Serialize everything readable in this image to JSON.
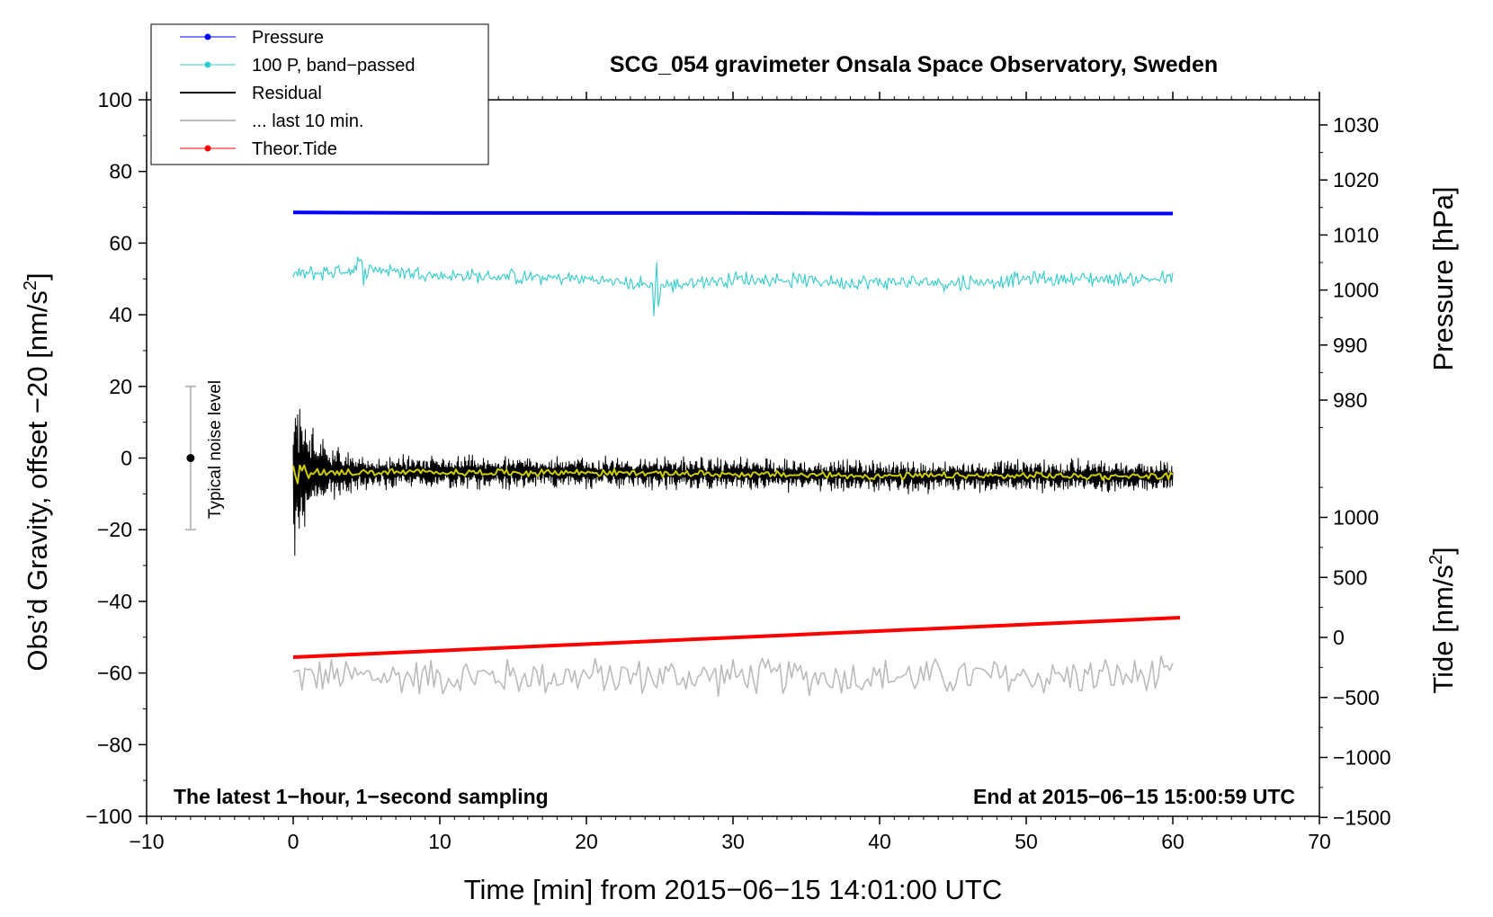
{
  "chart_data": {
    "type": "line",
    "title": "SCG_054 gravimeter Onsala Space Observatory, Sweden",
    "xlabel": "Time [min] from 2015−06−15 14:01:00 UTC",
    "ylabel": "Obs’d Gravity, offset −20 [nm/s",
    "ylabel_sup": "2",
    "ylabel_end": "]",
    "xlim": [
      -10,
      70
    ],
    "ylim": [
      -100,
      100
    ],
    "x_ticks": [
      -10,
      0,
      10,
      20,
      30,
      40,
      50,
      60,
      70
    ],
    "x_tick_labels": [
      "−10",
      "0",
      "10",
      "20",
      "30",
      "40",
      "50",
      "60",
      "70"
    ],
    "y_ticks": [
      -100,
      -80,
      -60,
      -40,
      -20,
      0,
      20,
      40,
      60,
      80,
      100
    ],
    "y_tick_labels": [
      "−100",
      "−80",
      "−60",
      "−40",
      "−20",
      "0",
      "20",
      "40",
      "60",
      "80",
      "100"
    ],
    "pressure_axis": {
      "label": "Pressure [hPa]",
      "ticks": [
        980,
        990,
        1000,
        1010,
        1020,
        1030
      ],
      "tick_labels": [
        "980",
        "990",
        "1000",
        "1010",
        "1020",
        "1030"
      ]
    },
    "tide_axis": {
      "label": "Tide [nm/s",
      "label_sup": "2",
      "label_end": "]",
      "ticks": [
        -1500,
        -1000,
        -500,
        0,
        500,
        1000
      ],
      "tick_labels": [
        "−1500",
        "−1000",
        "−500",
        "0",
        "500",
        "1000"
      ]
    },
    "legend": {
      "position": "top-left",
      "entries": [
        "Pressure",
        "100 P, band−passed",
        "Residual",
        "... last 10 min.",
        "Theor.Tide"
      ]
    },
    "noise_indicator": {
      "label": "Typical noise level",
      "x": -7,
      "center": 0,
      "range": [
        -20,
        20
      ]
    },
    "note_left": "The latest 1−hour, 1−second sampling",
    "note_right": "End at 2015−06−15 15:00:59 UTC",
    "series": [
      {
        "name": "Pressure",
        "color": "#0000ff",
        "description": "near-constant",
        "x": [
          0,
          10,
          20,
          30,
          40,
          50,
          60
        ],
        "pressure_hPa": [
          1014.1,
          1014.0,
          1014.0,
          1014.0,
          1013.9,
          1013.9,
          1013.9
        ]
      },
      {
        "name": "100 P, band−passed",
        "color": "#33cccc",
        "x": [
          0,
          5,
          10,
          20,
          25,
          30,
          40,
          46,
          50,
          60
        ],
        "y": [
          51,
          53,
          51,
          50,
          48,
          50,
          49,
          49,
          50,
          50
        ],
        "noise_amplitude": 2
      },
      {
        "name": "Residual",
        "color": "#000000",
        "x": [
          0,
          1,
          2,
          3,
          4,
          5,
          10,
          20,
          30,
          40,
          50,
          60
        ],
        "y": [
          -4,
          -4,
          -4,
          -4,
          -4,
          -4,
          -4,
          -4,
          -4.5,
          -5,
          -5,
          -5
        ],
        "noise_amplitude": 4,
        "burst_amplitude": 16
      },
      {
        "name": "smoothed residual",
        "color": "#cccc00",
        "x": [
          0,
          10,
          20,
          30,
          40,
          50,
          60
        ],
        "y": [
          -4,
          -4,
          -4,
          -4.5,
          -5,
          -5,
          -5
        ]
      },
      {
        "name": "... last 10 min.",
        "color": "#bbbbbb",
        "x": [
          0,
          60
        ],
        "y": [
          -61,
          -61
        ],
        "noise_amplitude": 5
      },
      {
        "name": "Theor.Tide",
        "color": "#ff0000",
        "x": [
          0,
          60.5
        ],
        "tide_nm_s2": [
          -165,
          165
        ]
      }
    ]
  }
}
